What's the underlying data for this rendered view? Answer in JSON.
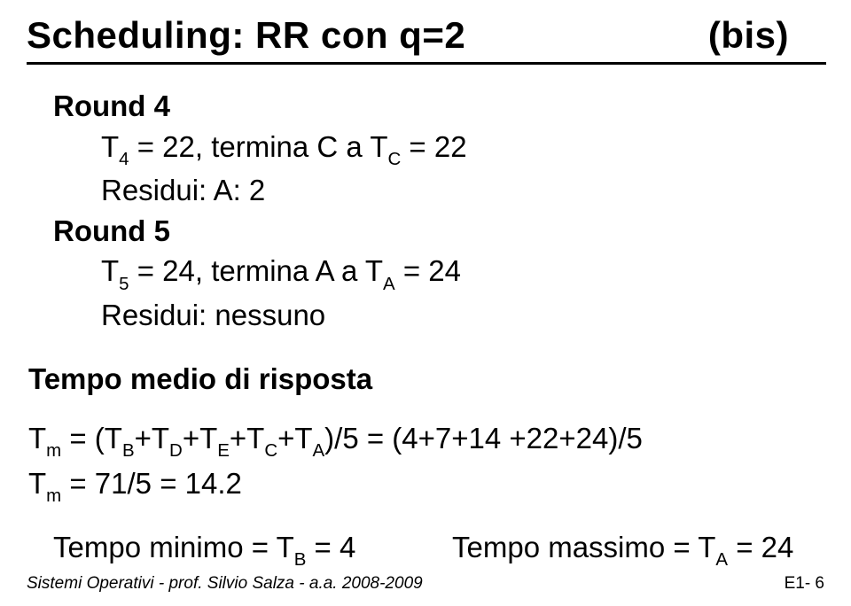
{
  "title_left": "Scheduling: RR con  q=2",
  "title_right": "(bis)",
  "round4": {
    "label": "Round 4",
    "line1_pre": "T",
    "line1_sub": "4",
    "line1_mid": " = 22,  termina C a T",
    "line1_sub2": "C",
    "line1_post": " = 22",
    "line2": "Residui: A: 2"
  },
  "round5": {
    "label": "Round 5",
    "line1_pre": "T",
    "line1_sub": "5",
    "line1_mid": " = 24,  termina A a T",
    "line1_sub2": "A",
    "line1_post": " = 24",
    "line2": "Residui: nessuno"
  },
  "tempo_medio_label": "Tempo medio di risposta",
  "eq1": {
    "lhs_pre": "T",
    "lhs_sub": "m",
    "eq": " = (T",
    "sB": "B",
    "p1": "+T",
    "sD": "D",
    "p2": "+T",
    "sE": "E",
    "p3": "+T",
    "sC": "C",
    "p4": "+T",
    "sA": "A",
    "rhs": ")/5 = (4+7+14 +22+24)/5"
  },
  "eq2": {
    "lhs_pre": "T",
    "lhs_sub": "m",
    "rhs": " =  71/5 = 14.2"
  },
  "min": {
    "pre": "Tempo minimo = T",
    "sub": "B",
    "post": " = 4"
  },
  "max": {
    "pre": "Tempo massimo = T",
    "sub": "A",
    "post": " = 24"
  },
  "footer_left": "Sistemi Operativi  -  prof. Silvio Salza  -  a.a. 2008-2009",
  "footer_right": "E1- 6"
}
